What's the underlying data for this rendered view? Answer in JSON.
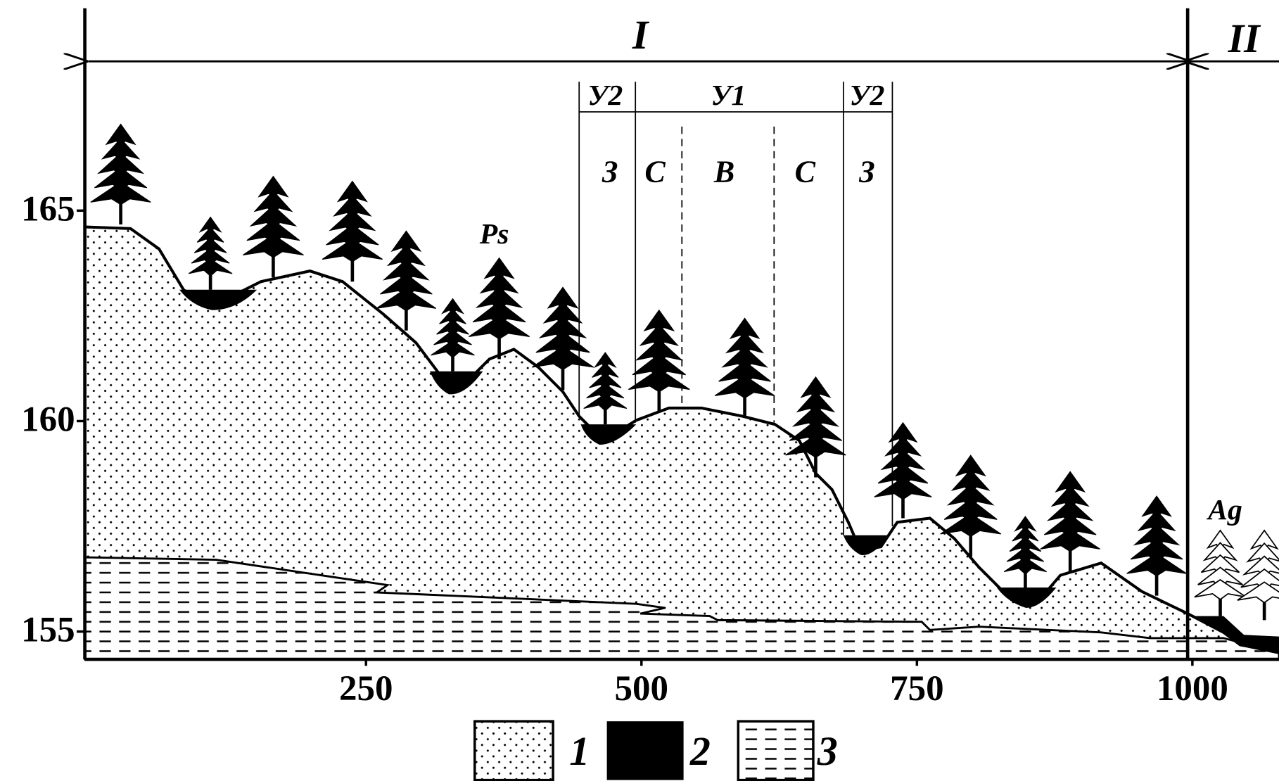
{
  "axes": {
    "y_ticks": [
      165,
      160,
      155
    ],
    "x_ticks": [
      250,
      500,
      750,
      1000
    ]
  },
  "zones": {
    "main": [
      "I",
      "II"
    ],
    "subzones": [
      "У2",
      "У1",
      "У2"
    ],
    "belts": [
      "З",
      "С",
      "В",
      "С",
      "З"
    ]
  },
  "labels": {
    "pine": "Ps",
    "aspen": "Ag"
  },
  "legend": [
    "1",
    "2",
    "3"
  ]
}
